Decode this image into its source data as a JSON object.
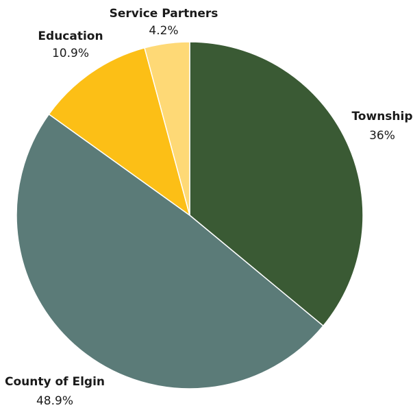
{
  "chart_data": {
    "type": "pie",
    "start": "12 o'clock",
    "direction": "clockwise",
    "legend": "none",
    "slices": [
      {
        "label": "Township",
        "value": 36,
        "value_label": "36%",
        "color": "#3a5a34"
      },
      {
        "label": "County of Elgin",
        "value": 48.9,
        "value_label": "48.9%",
        "color": "#5b7b78"
      },
      {
        "label": "Education",
        "value": 10.9,
        "value_label": "10.9%",
        "color": "#fcbf16"
      },
      {
        "label": "Service Partners",
        "value": 4.2,
        "value_label": "4.2%",
        "color": "#fed976"
      }
    ]
  }
}
